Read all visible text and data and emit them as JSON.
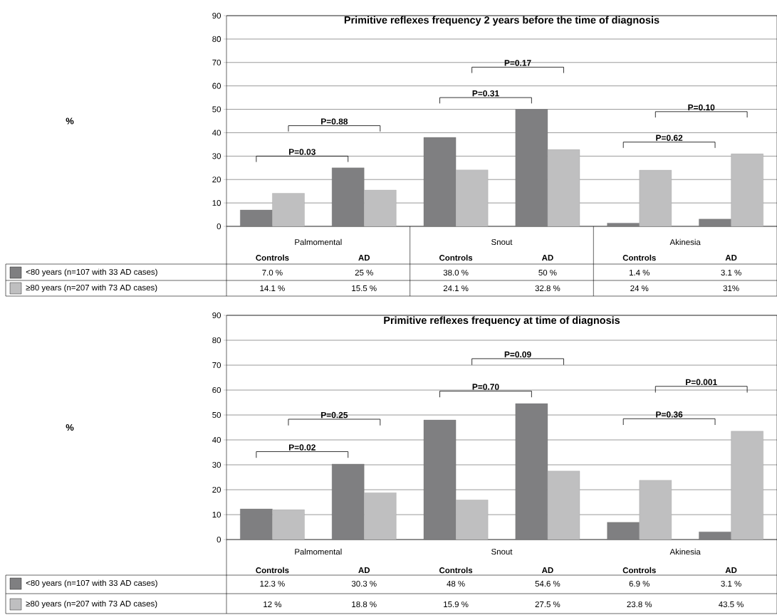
{
  "chart_data": [
    {
      "type": "bar",
      "title": "Primitive reflexes frequency 2 years before the time of diagnosis",
      "ylabel": "%",
      "categories": [
        "Controls",
        "AD",
        "Controls",
        "AD",
        "Controls",
        "AD"
      ],
      "series": [
        {
          "name": "<80 years (n=107 with 33 AD cases)",
          "color": "#7f7f81",
          "values": [
            7.0,
            25,
            38.0,
            50,
            1.4,
            3.1
          ],
          "value_labels": [
            "7.0 %",
            "25 %",
            "38.0 %",
            "50 %",
            "1.4 %",
            "3.1 %"
          ]
        },
        {
          "name": "≥80 years (n=207 with 73 AD cases)",
          "color": "#bfbfc0",
          "values": [
            14.1,
            15.5,
            24.1,
            32.8,
            24,
            31
          ],
          "value_labels": [
            "14.1 %",
            "15.5 %",
            "24.1 %",
            "32.8 %",
            "24 %",
            "31%"
          ]
        }
      ],
      "ylim": [
        0,
        90
      ],
      "yticks": [
        0,
        10,
        20,
        30,
        40,
        50,
        60,
        70,
        80,
        90
      ],
      "grid": "y",
      "legend": "bottom",
      "annotations": [
        "Palmomental",
        "Snout",
        "Akinesia",
        "P=0.03",
        "P=0.88",
        "P=0.31",
        "P=0.17",
        "P=0.62",
        "P=0.10"
      ]
    },
    {
      "type": "bar",
      "title": "Primitive reflexes frequency at time of diagnosis",
      "ylabel": "%",
      "categories": [
        "Controls",
        "AD",
        "Controls",
        "AD",
        "Controls",
        "AD"
      ],
      "series": [
        {
          "name": "<80 years (n=107 with 33 AD cases)",
          "color": "#7f7f81",
          "values": [
            12.3,
            30.3,
            48,
            54.6,
            6.9,
            3.1
          ],
          "value_labels": [
            "12.3 %",
            "30.3 %",
            "48 %",
            "54.6 %",
            "6.9 %",
            "3.1 %"
          ]
        },
        {
          "name": "≥80 years (n=207 with 73 AD cases)",
          "color": "#bfbfc0",
          "values": [
            12,
            18.8,
            15.9,
            27.5,
            23.8,
            43.5
          ],
          "value_labels": [
            "12 %",
            "18.8 %",
            "15.9 %",
            "27.5 %",
            "23.8 %",
            "43.5 %"
          ]
        }
      ],
      "ylim": [
        0,
        90
      ],
      "yticks": [
        0,
        10,
        20,
        30,
        40,
        50,
        60,
        70,
        80,
        90
      ],
      "grid": "y",
      "legend": "bottom",
      "annotations": [
        "Palmomental",
        "Snout",
        "Akinesia",
        "P=0.02",
        "P=0.25",
        "P=0.70",
        "P=0.09",
        "P=0.36",
        "P=0.001"
      ]
    }
  ]
}
